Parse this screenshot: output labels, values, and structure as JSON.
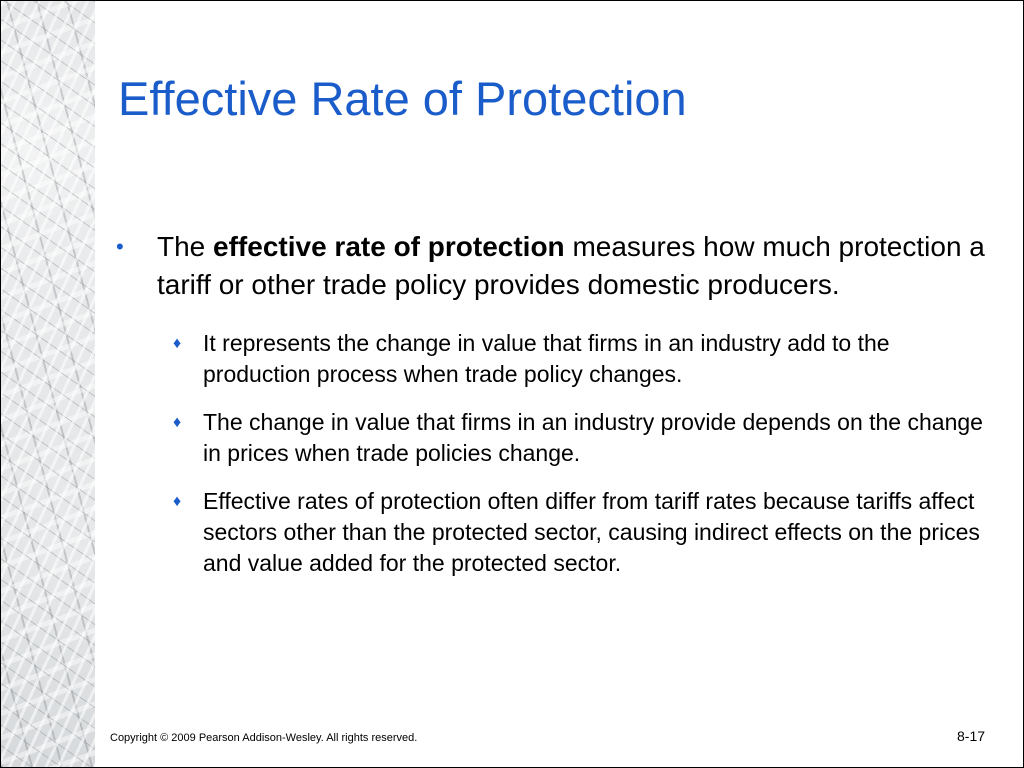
{
  "slide": {
    "title": "Effective Rate of Protection",
    "bullets": [
      {
        "marker": "•",
        "text_before": "The ",
        "text_bold": "effective rate of protection",
        "text_after": " measures how much protection a tariff or other trade policy provides domestic producers.",
        "sub_bullets": [
          {
            "marker": "♦",
            "text": "It represents the change in value that firms in an industry add to the production process when trade policy changes."
          },
          {
            "marker": "♦",
            "text": "The change in value that firms in an industry provide depends on the change in prices when trade policies change."
          },
          {
            "marker": "♦",
            "text": "Effective rates of protection often differ from tariff rates because tariffs affect sectors other than the protected sector, causing indirect effects on the prices and value added for the protected sector."
          }
        ]
      }
    ],
    "footer": {
      "copyright": "Copyright © 2009 Pearson Addison-Wesley. All rights reserved.",
      "page_number": "8-17"
    },
    "colors": {
      "title": "#1a5cc9",
      "bullet_marker": "#1a5cc9",
      "body_text": "#000000",
      "background": "#ffffff"
    }
  }
}
